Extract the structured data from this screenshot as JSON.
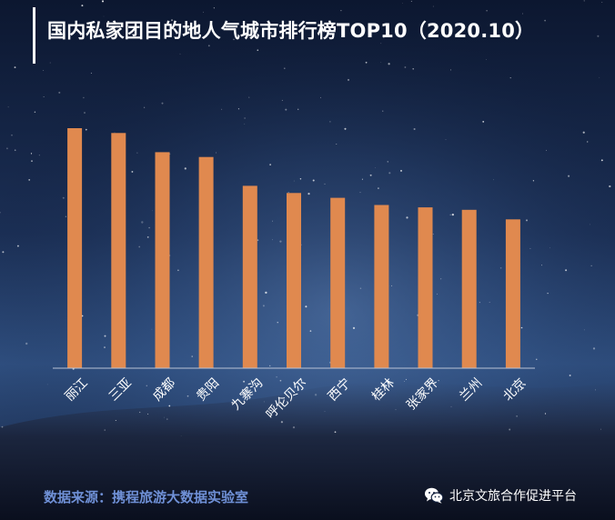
{
  "title": "国内私家团目的地人气城市排行榜TOP10（2020.10）",
  "footer": {
    "source": "数据来源：携程旅游大数据实验室",
    "brand": "北京文旅合作促进平台",
    "brand_icon": "wechat-icon"
  },
  "colors": {
    "bar": "#e0894f",
    "axis": "#b9c3d6",
    "label": "#ffffff",
    "source_text": "#6f90d6"
  },
  "chart_data": {
    "type": "bar",
    "title": "国内私家团目的地人气城市排行榜TOP10（2020.10）",
    "xlabel": "",
    "ylabel": "",
    "categories": [
      "丽江",
      "三亚",
      "成都",
      "贵阳",
      "九寨沟",
      "呼伦贝尔",
      "西宁",
      "桂林",
      "张家界",
      "兰州",
      "北京"
    ],
    "values": [
      100,
      98,
      90,
      88,
      76,
      73,
      71,
      68,
      67,
      66,
      62
    ],
    "ylim": [
      0,
      100
    ],
    "grid": false,
    "legend": "none"
  }
}
